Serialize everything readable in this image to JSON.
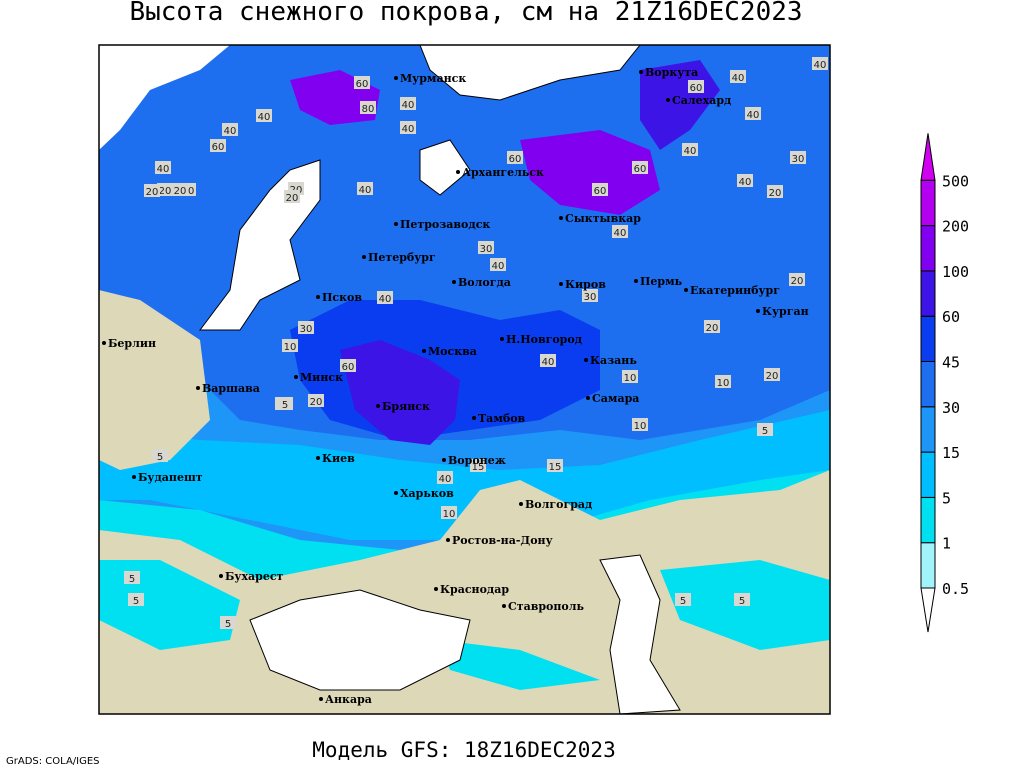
{
  "title": "Высота снежного покрова, см на 21Z16DEC2023",
  "footer": "Модель GFS: 18Z16DEC2023",
  "credit": "GrADS: COLA/IGES",
  "cities": [
    "Мурманск",
    "Воркута",
    "Салехард",
    "Архангельск",
    "Петрозаводск",
    "Сыктывкар",
    "Петербург",
    "Вологда",
    "Киров",
    "Пермь",
    "Екатеринбург",
    "Курган",
    "Псков",
    "Берлин",
    "Н.Новгород",
    "Москва",
    "Казань",
    "Минск",
    "Варшава",
    "Самара",
    "Брянск",
    "Тамбов",
    "Киев",
    "Воронеж",
    "Будапешт",
    "Харьков",
    "Волгоград",
    "Ростов-на-Дону",
    "Бухарест",
    "Краснодар",
    "Ставрополь",
    "Анкара"
  ],
  "contour_labels": [
    60,
    80,
    40,
    40,
    40,
    60,
    40,
    20,
    30,
    40,
    20,
    20,
    40,
    60,
    60,
    60,
    40,
    30,
    40,
    40,
    20,
    40,
    40,
    30,
    20,
    30,
    20,
    20,
    30,
    40,
    10,
    40,
    60,
    10,
    20,
    20,
    10,
    5,
    20,
    60,
    40,
    40,
    10,
    5,
    5,
    15,
    15,
    10,
    5,
    5,
    5,
    5,
    5,
    5,
    40
  ],
  "legend": {
    "levels": [
      0.5,
      1,
      5,
      15,
      30,
      45,
      60,
      100,
      200,
      500
    ],
    "colors": [
      "#ffffff",
      "#a0f4fa",
      "#00e0f0",
      "#00beff",
      "#1e96f8",
      "#1e6ef0",
      "#0a3cf0",
      "#3c14e6",
      "#8200f0",
      "#b400f0",
      "#d200f0"
    ]
  }
}
